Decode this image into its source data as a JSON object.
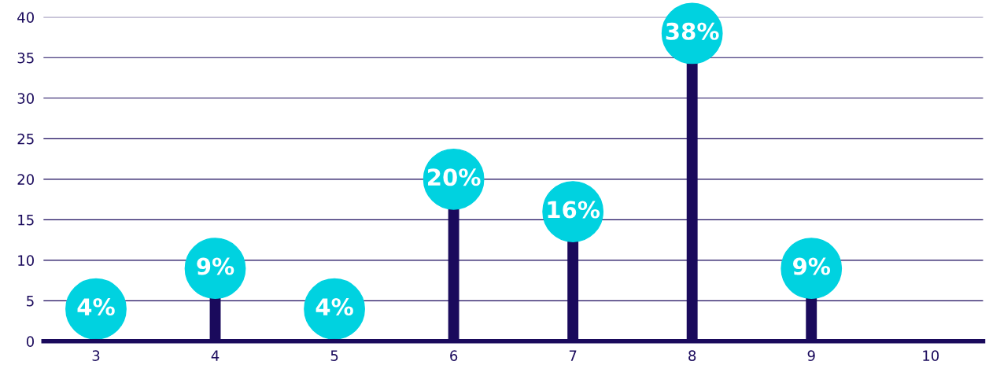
{
  "chart_data": {
    "type": "lollipop",
    "categories": [
      "3",
      "4",
      "5",
      "6",
      "7",
      "8",
      "9",
      "10"
    ],
    "values": [
      4,
      9,
      4,
      20,
      16,
      38,
      9,
      null
    ],
    "value_labels": [
      "4%",
      "9%",
      "4%",
      "20%",
      "16%",
      "38%",
      "9%",
      null
    ],
    "color": "#00d2e0",
    "ylim": [
      0,
      40
    ],
    "yticks": [
      0,
      5,
      10,
      15,
      20,
      25,
      30,
      35,
      40
    ],
    "grid": "y",
    "legend": false,
    "marker": "circle"
  }
}
